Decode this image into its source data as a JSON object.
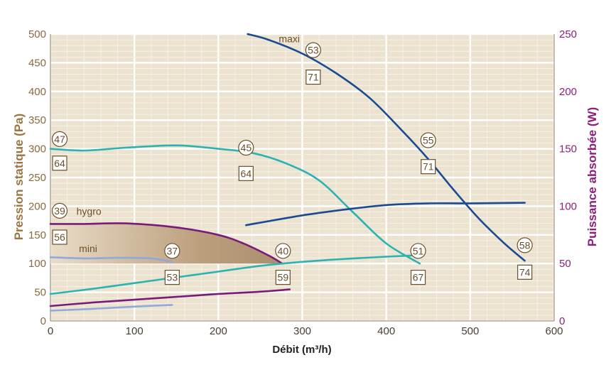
{
  "chart_data": {
    "type": "line",
    "xlabel": "Débit (m³/h)",
    "ylabel": "Pression statique (Pa)",
    "y2label": "Puissance absorbée (W)",
    "xlim": [
      0,
      600
    ],
    "ylim": [
      0,
      500
    ],
    "y2lim": [
      0,
      250
    ],
    "x_ticks": [
      "0",
      "100",
      "200",
      "300",
      "400",
      "500",
      "600"
    ],
    "y_ticks": [
      "0",
      "50",
      "100",
      "150",
      "200",
      "250",
      "300",
      "350",
      "400",
      "450",
      "500"
    ],
    "y2_ticks": [
      "0",
      "50",
      "100",
      "150",
      "200",
      "250"
    ],
    "grid": true,
    "colors": {
      "background": "#ebe2cf",
      "grid_major": "#ffffff",
      "left_axis": "#8a6a3f",
      "right_axis": "#8c1f7c",
      "maxi": "#1a4a94",
      "teal": "#2bb3b1",
      "hygro": "#7a1a7a",
      "mini": "#8fa9dc",
      "area_fill": "#a88a6a"
    },
    "series": [
      {
        "name": "maxi",
        "axis": "left",
        "color_key": "maxi",
        "x": [
          235,
          260,
          300,
          340,
          380,
          420,
          450,
          480,
          510,
          540,
          565
        ],
        "y": [
          500,
          490,
          466,
          432,
          389,
          330,
          282,
          229,
          179,
          136,
          105
        ]
      },
      {
        "name": "",
        "axis": "left",
        "color_key": "teal",
        "x": [
          0,
          40,
          90,
          150,
          200,
          240,
          280,
          320,
          360,
          400,
          440
        ],
        "y": [
          300,
          297,
          302,
          306,
          300,
          293,
          275,
          245,
          190,
          135,
          100
        ]
      },
      {
        "name": "hygro",
        "axis": "left",
        "color_key": "hygro",
        "x": [
          0,
          40,
          90,
          150,
          200,
          230,
          260,
          275
        ],
        "y": [
          169,
          169,
          170,
          163,
          150,
          135,
          114,
          101
        ]
      },
      {
        "name": "mini",
        "axis": "left",
        "color_key": "mini",
        "x": [
          0,
          40,
          80,
          120,
          145
        ],
        "y": [
          111,
          109,
          110,
          109,
          103
        ]
      },
      {
        "name": "",
        "axis": "right",
        "color_key": "maxi",
        "x": [
          233,
          300,
          350,
          400,
          450,
          500,
          565
        ],
        "y": [
          83.5,
          92,
          97,
          101,
          102.5,
          102.5,
          103
        ]
      },
      {
        "name": "",
        "axis": "right",
        "color_key": "teal",
        "x": [
          0,
          50,
          100,
          150,
          200,
          250,
          300,
          350,
          400,
          430
        ],
        "y": [
          23.5,
          28,
          33,
          38,
          43,
          48,
          51.5,
          54,
          56,
          57
        ]
      },
      {
        "name": "",
        "axis": "right",
        "color_key": "hygro",
        "x": [
          0,
          50,
          100,
          150,
          200,
          250,
          285
        ],
        "y": [
          13,
          16,
          18.5,
          21,
          23.5,
          25.5,
          27.5
        ]
      },
      {
        "name": "",
        "axis": "right",
        "color_key": "mini",
        "x": [
          0,
          50,
          100,
          145
        ],
        "y": [
          9,
          10.5,
          12.5,
          14
        ]
      }
    ],
    "shaded_region": {
      "upper_series": "hygro",
      "y_floor": 100
    },
    "circle_markers": [
      {
        "label": "53",
        "x": 313,
        "y": 472
      },
      {
        "label": "55",
        "x": 450,
        "y": 315
      },
      {
        "label": "58",
        "x": 565,
        "y": 132
      },
      {
        "label": "47",
        "x": 11,
        "y": 317
      },
      {
        "label": "45",
        "x": 233,
        "y": 302
      },
      {
        "label": "39",
        "x": 11,
        "y": 192
      },
      {
        "label": "37",
        "x": 145,
        "y": 122
      },
      {
        "label": "40",
        "x": 277,
        "y": 122
      },
      {
        "label": "51",
        "x": 438,
        "y": 122
      }
    ],
    "box_markers": [
      {
        "label": "71",
        "x": 313,
        "y": 425
      },
      {
        "label": "71",
        "x": 450,
        "y": 269
      },
      {
        "label": "74",
        "x": 565,
        "y": 85
      },
      {
        "label": "64",
        "x": 11,
        "y": 275
      },
      {
        "label": "64",
        "x": 233,
        "y": 257
      },
      {
        "label": "56",
        "x": 11,
        "y": 146
      },
      {
        "label": "53",
        "x": 145,
        "y": 76
      },
      {
        "label": "59",
        "x": 277,
        "y": 76
      },
      {
        "label": "67",
        "x": 438,
        "y": 76
      }
    ],
    "annotations": [
      {
        "text": "maxi",
        "x": 272,
        "y": 486
      },
      {
        "text": "hygro",
        "x": 31,
        "y": 185
      },
      {
        "text": "mini",
        "x": 34,
        "y": 120
      }
    ]
  }
}
